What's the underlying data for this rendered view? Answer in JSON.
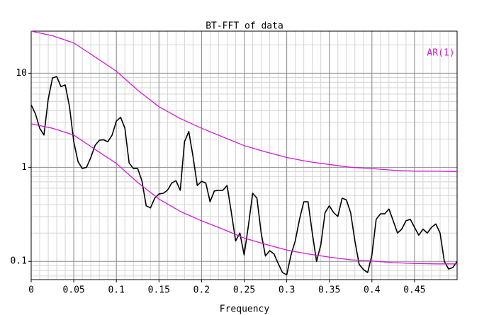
{
  "chart_data": {
    "type": "line",
    "title": "BT-FFT of data",
    "x_label": "Frequency",
    "annotation": "AR(1)",
    "annotation_color": "#d21cd2",
    "xlim": [
      0,
      0.5
    ],
    "xticks": [
      0,
      0.05,
      0.1,
      0.15,
      0.2,
      0.25,
      0.3,
      0.35,
      0.4,
      0.45
    ],
    "ylim": [
      0.064,
      28
    ],
    "yticks": [
      {
        "value": 0.1,
        "label": "0.1"
      },
      1,
      10
    ],
    "log_y": true,
    "grid": true,
    "minor_grid": true,
    "series": [
      {
        "color": "#000000",
        "x": [
          0,
          0.005,
          0.01,
          0.015,
          0.02,
          0.025,
          0.03,
          0.035,
          0.04,
          0.045,
          0.05,
          0.055,
          0.06,
          0.065,
          0.07,
          0.075,
          0.08,
          0.085,
          0.09,
          0.095,
          0.1,
          0.105,
          0.11,
          0.115,
          0.12,
          0.125,
          0.13,
          0.135,
          0.14,
          0.145,
          0.15,
          0.155,
          0.16,
          0.165,
          0.17,
          0.175,
          0.18,
          0.185,
          0.19,
          0.195,
          0.2,
          0.205,
          0.21,
          0.215,
          0.22,
          0.225,
          0.23,
          0.235,
          0.24,
          0.245,
          0.25,
          0.255,
          0.26,
          0.265,
          0.27,
          0.275,
          0.28,
          0.285,
          0.29,
          0.295,
          0.3,
          0.305,
          0.31,
          0.315,
          0.32,
          0.325,
          0.33,
          0.335,
          0.34,
          0.345,
          0.35,
          0.355,
          0.36,
          0.365,
          0.37,
          0.375,
          0.38,
          0.385,
          0.39,
          0.395,
          0.4,
          0.405,
          0.41,
          0.415,
          0.42,
          0.425,
          0.43,
          0.435,
          0.44,
          0.445,
          0.45,
          0.455,
          0.46,
          0.465,
          0.47,
          0.475,
          0.48,
          0.485,
          0.49,
          0.495,
          0.5
        ],
        "values": [
          4.6,
          3.7,
          2.6,
          2.2,
          5.3,
          8.9,
          9.2,
          7.2,
          7.5,
          4.4,
          1.87,
          1.15,
          0.97,
          1.0,
          1.27,
          1.71,
          1.94,
          1.96,
          1.87,
          2.2,
          3.1,
          3.4,
          2.6,
          1.11,
          0.97,
          0.97,
          0.72,
          0.39,
          0.37,
          0.47,
          0.52,
          0.53,
          0.57,
          0.68,
          0.72,
          0.57,
          1.87,
          2.4,
          1.3,
          0.64,
          0.71,
          0.68,
          0.43,
          0.56,
          0.57,
          0.57,
          0.64,
          0.33,
          0.165,
          0.2,
          0.117,
          0.24,
          0.53,
          0.47,
          0.2,
          0.114,
          0.13,
          0.12,
          0.095,
          0.076,
          0.072,
          0.117,
          0.165,
          0.28,
          0.43,
          0.43,
          0.2,
          0.1,
          0.15,
          0.33,
          0.39,
          0.33,
          0.3,
          0.47,
          0.45,
          0.33,
          0.165,
          0.093,
          0.082,
          0.076,
          0.117,
          0.28,
          0.32,
          0.32,
          0.36,
          0.27,
          0.2,
          0.22,
          0.27,
          0.28,
          0.23,
          0.19,
          0.22,
          0.2,
          0.23,
          0.25,
          0.2,
          0.1,
          0.083,
          0.086,
          0.1
        ]
      },
      {
        "color": "#d21cd2",
        "x": [
          0,
          0.025,
          0.05,
          0.075,
          0.1,
          0.125,
          0.15,
          0.175,
          0.2,
          0.225,
          0.25,
          0.275,
          0.3,
          0.325,
          0.35,
          0.375,
          0.4,
          0.425,
          0.45,
          0.475,
          0.5
        ],
        "values": [
          28,
          25,
          21,
          14.9,
          10.5,
          6.6,
          4.4,
          3.3,
          2.6,
          2.1,
          1.7,
          1.46,
          1.27,
          1.15,
          1.07,
          1.0,
          0.97,
          0.93,
          0.91,
          0.91,
          0.9
        ]
      },
      {
        "color": "#d21cd2",
        "x": [
          0,
          0.025,
          0.05,
          0.075,
          0.1,
          0.125,
          0.15,
          0.175,
          0.2,
          0.225,
          0.25,
          0.275,
          0.3,
          0.325,
          0.35,
          0.375,
          0.4,
          0.425,
          0.45,
          0.475,
          0.5
        ],
        "values": [
          2.9,
          2.6,
          2.2,
          1.55,
          1.1,
          0.69,
          0.46,
          0.34,
          0.27,
          0.22,
          0.177,
          0.152,
          0.132,
          0.12,
          0.111,
          0.104,
          0.101,
          0.097,
          0.095,
          0.094,
          0.094
        ]
      }
    ]
  }
}
